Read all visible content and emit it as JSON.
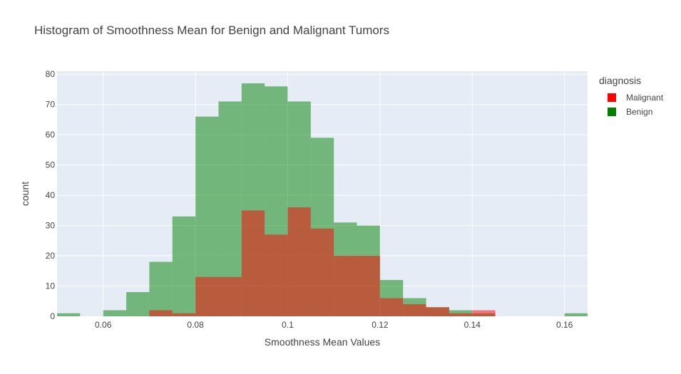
{
  "chart_data": {
    "type": "bar",
    "barmode": "overlay",
    "title": "Histogram of Smoothness Mean for Benign and Malignant Tumors",
    "xlabel": "Smoothness Mean Values",
    "ylabel": "count",
    "xlim": [
      0.05,
      0.165
    ],
    "ylim": [
      0,
      81
    ],
    "bin_width": 0.005,
    "x_ticks": [
      "0.06",
      "0.08",
      "0.1",
      "0.12",
      "0.14",
      "0.16"
    ],
    "x_tick_values": [
      0.06,
      0.08,
      0.1,
      0.12,
      0.14,
      0.16
    ],
    "y_ticks": [
      "0",
      "10",
      "20",
      "30",
      "40",
      "50",
      "60",
      "70",
      "80"
    ],
    "y_tick_values": [
      0,
      10,
      20,
      30,
      40,
      50,
      60,
      70,
      80
    ],
    "grid": true,
    "legend_title": "diagnosis",
    "legend_position": "top-right",
    "series": [
      {
        "name": "Malignant",
        "color": "#ff0000",
        "bins": [
          {
            "x0": 0.07,
            "value": 2
          },
          {
            "x0": 0.075,
            "value": 1
          },
          {
            "x0": 0.08,
            "value": 13
          },
          {
            "x0": 0.085,
            "value": 13
          },
          {
            "x0": 0.09,
            "value": 35
          },
          {
            "x0": 0.095,
            "value": 27
          },
          {
            "x0": 0.1,
            "value": 36
          },
          {
            "x0": 0.105,
            "value": 29
          },
          {
            "x0": 0.11,
            "value": 20
          },
          {
            "x0": 0.115,
            "value": 20
          },
          {
            "x0": 0.12,
            "value": 6
          },
          {
            "x0": 0.125,
            "value": 4
          },
          {
            "x0": 0.13,
            "value": 3
          },
          {
            "x0": 0.135,
            "value": 1
          },
          {
            "x0": 0.14,
            "value": 2
          }
        ]
      },
      {
        "name": "Benign",
        "color": "#008000",
        "bins": [
          {
            "x0": 0.05,
            "value": 1
          },
          {
            "x0": 0.06,
            "value": 2
          },
          {
            "x0": 0.065,
            "value": 8
          },
          {
            "x0": 0.07,
            "value": 18
          },
          {
            "x0": 0.075,
            "value": 33
          },
          {
            "x0": 0.08,
            "value": 66
          },
          {
            "x0": 0.085,
            "value": 71
          },
          {
            "x0": 0.09,
            "value": 77
          },
          {
            "x0": 0.095,
            "value": 76
          },
          {
            "x0": 0.1,
            "value": 71
          },
          {
            "x0": 0.105,
            "value": 59
          },
          {
            "x0": 0.11,
            "value": 31
          },
          {
            "x0": 0.115,
            "value": 30
          },
          {
            "x0": 0.12,
            "value": 12
          },
          {
            "x0": 0.125,
            "value": 6
          },
          {
            "x0": 0.13,
            "value": 3
          },
          {
            "x0": 0.135,
            "value": 2
          },
          {
            "x0": 0.14,
            "value": 1
          },
          {
            "x0": 0.16,
            "value": 1
          }
        ]
      }
    ]
  }
}
